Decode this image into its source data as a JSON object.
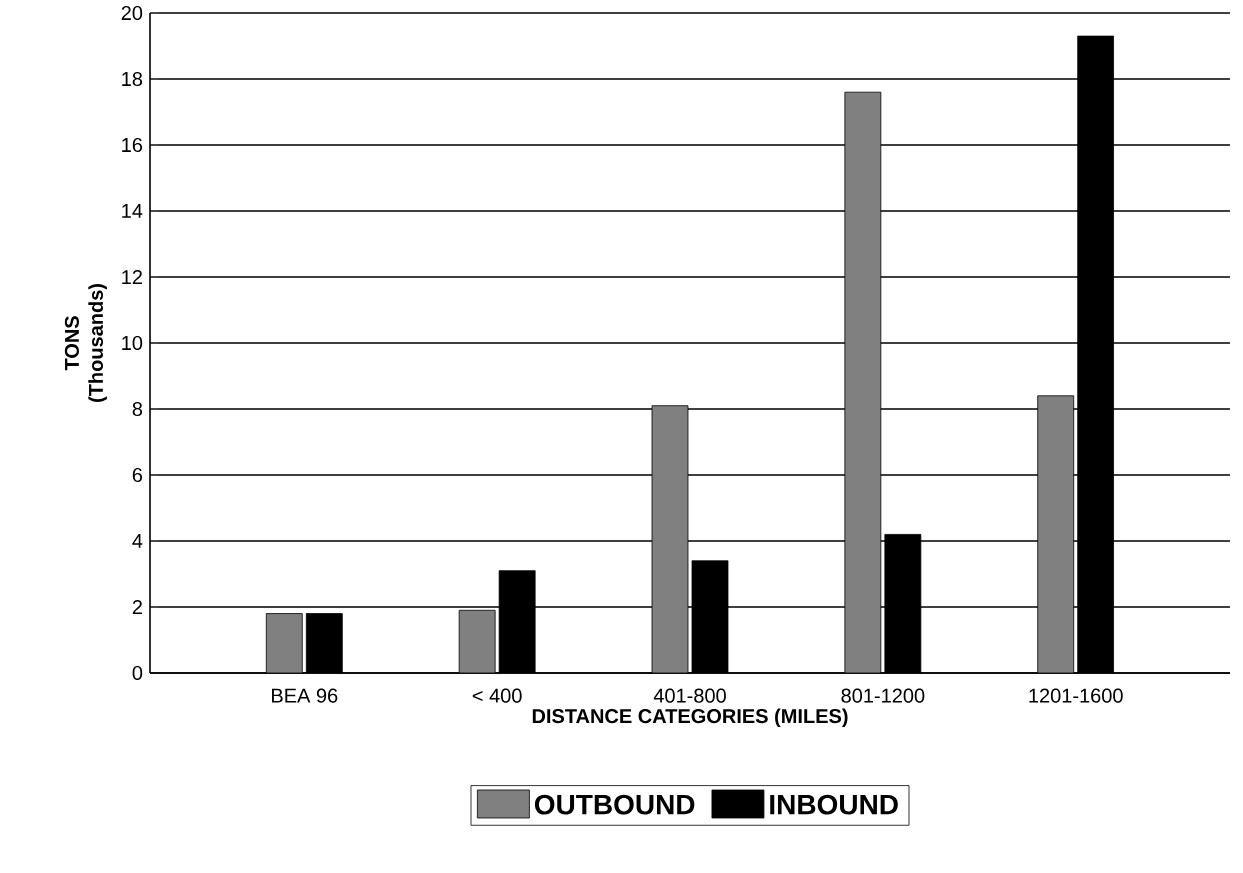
{
  "chart_data": {
    "type": "bar",
    "xlabel": "DISTANCE CATEGORIES (MILES)",
    "ylabel": "TONS (Thousands)",
    "categories": [
      "BEA 96",
      "< 400",
      "401-800",
      "801-1200",
      "1201-1600"
    ],
    "series": [
      {
        "name": "OUTBOUND",
        "color": "#808080",
        "values": [
          1.8,
          1.9,
          8.1,
          17.6,
          8.4
        ]
      },
      {
        "name": "INBOUND",
        "color": "#000000",
        "values": [
          1.8,
          3.1,
          3.4,
          4.2,
          19.3
        ]
      }
    ],
    "ylim": [
      0,
      20
    ],
    "yticks": [
      0,
      2,
      4,
      6,
      8,
      10,
      12,
      14,
      16,
      18,
      20
    ],
    "grid": "y",
    "legend": "bottom"
  }
}
